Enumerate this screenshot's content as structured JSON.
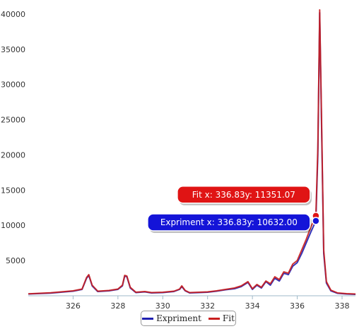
{
  "chart_data": {
    "type": "line",
    "title": "",
    "xlabel": "",
    "ylabel": "",
    "xlim": [
      324.0,
      338.6
    ],
    "ylim": [
      0,
      41000
    ],
    "x_ticks": [
      326,
      328,
      330,
      332,
      334,
      336,
      338
    ],
    "y_ticks": [
      5000,
      10000,
      15000,
      20000,
      25000,
      30000,
      35000,
      40000
    ],
    "y_tick_labels": [
      "5000",
      "10000",
      "15000",
      "20000",
      "25000",
      "30000",
      "35000",
      "40000"
    ],
    "grid": false,
    "legend_position": "bottom",
    "series": [
      {
        "name": "Expriment",
        "color": "#1f1fb0",
        "points": [
          [
            324.0,
            250
          ],
          [
            325.0,
            380
          ],
          [
            326.0,
            650
          ],
          [
            326.4,
            900
          ],
          [
            326.6,
            2500
          ],
          [
            326.7,
            2900
          ],
          [
            326.85,
            1400
          ],
          [
            327.1,
            600
          ],
          [
            327.6,
            700
          ],
          [
            328.0,
            900
          ],
          [
            328.2,
            1400
          ],
          [
            328.3,
            2800
          ],
          [
            328.4,
            2700
          ],
          [
            328.55,
            1100
          ],
          [
            328.8,
            450
          ],
          [
            329.2,
            550
          ],
          [
            329.5,
            400
          ],
          [
            330.0,
            450
          ],
          [
            330.5,
            600
          ],
          [
            330.75,
            900
          ],
          [
            330.85,
            1300
          ],
          [
            331.0,
            700
          ],
          [
            331.2,
            400
          ],
          [
            331.6,
            450
          ],
          [
            332.0,
            500
          ],
          [
            332.4,
            650
          ],
          [
            332.8,
            850
          ],
          [
            333.2,
            1000
          ],
          [
            333.5,
            1300
          ],
          [
            333.8,
            1900
          ],
          [
            334.0,
            900
          ],
          [
            334.2,
            1500
          ],
          [
            334.4,
            1100
          ],
          [
            334.6,
            2000
          ],
          [
            334.8,
            1500
          ],
          [
            335.0,
            2500
          ],
          [
            335.2,
            2100
          ],
          [
            335.4,
            3200
          ],
          [
            335.6,
            3000
          ],
          [
            335.8,
            4200
          ],
          [
            336.0,
            4700
          ],
          [
            336.2,
            6000
          ],
          [
            336.4,
            7500
          ],
          [
            336.6,
            9000
          ],
          [
            336.83,
            10632
          ],
          [
            336.92,
            20000
          ],
          [
            337.0,
            40200
          ],
          [
            337.08,
            25000
          ],
          [
            337.18,
            6000
          ],
          [
            337.3,
            1800
          ],
          [
            337.5,
            700
          ],
          [
            337.8,
            350
          ],
          [
            338.2,
            250
          ],
          [
            338.6,
            200
          ]
        ]
      },
      {
        "name": "Fit",
        "color": "#c81e1e",
        "points": [
          [
            324.0,
            280
          ],
          [
            325.0,
            420
          ],
          [
            326.0,
            700
          ],
          [
            326.4,
            950
          ],
          [
            326.6,
            2600
          ],
          [
            326.7,
            3000
          ],
          [
            326.85,
            1500
          ],
          [
            327.1,
            650
          ],
          [
            327.6,
            750
          ],
          [
            328.0,
            950
          ],
          [
            328.2,
            1500
          ],
          [
            328.3,
            2900
          ],
          [
            328.4,
            2800
          ],
          [
            328.55,
            1200
          ],
          [
            328.8,
            500
          ],
          [
            329.2,
            600
          ],
          [
            329.5,
            450
          ],
          [
            330.0,
            500
          ],
          [
            330.5,
            650
          ],
          [
            330.75,
            950
          ],
          [
            330.85,
            1400
          ],
          [
            331.0,
            750
          ],
          [
            331.2,
            450
          ],
          [
            331.6,
            500
          ],
          [
            332.0,
            550
          ],
          [
            332.4,
            700
          ],
          [
            332.8,
            900
          ],
          [
            333.2,
            1100
          ],
          [
            333.5,
            1400
          ],
          [
            333.8,
            2000
          ],
          [
            334.0,
            1000
          ],
          [
            334.2,
            1600
          ],
          [
            334.4,
            1200
          ],
          [
            334.6,
            2100
          ],
          [
            334.8,
            1700
          ],
          [
            335.0,
            2700
          ],
          [
            335.2,
            2300
          ],
          [
            335.4,
            3400
          ],
          [
            335.6,
            3200
          ],
          [
            335.8,
            4500
          ],
          [
            336.0,
            5000
          ],
          [
            336.2,
            6500
          ],
          [
            336.4,
            8000
          ],
          [
            336.6,
            9700
          ],
          [
            336.83,
            11351.07
          ],
          [
            336.92,
            21000
          ],
          [
            337.0,
            40600
          ],
          [
            337.08,
            26000
          ],
          [
            337.18,
            6500
          ],
          [
            337.3,
            2000
          ],
          [
            337.5,
            800
          ],
          [
            337.8,
            400
          ],
          [
            338.2,
            300
          ],
          [
            338.6,
            250
          ]
        ]
      }
    ],
    "tooltips": [
      {
        "series": "Fit",
        "x": 336.83,
        "y": 11351.07,
        "label": "Fit x: 336.83y: 11351.07",
        "color": "#e01414"
      },
      {
        "series": "Expriment",
        "x": 336.83,
        "y": 10632.0,
        "label": "Expriment x: 336.83y: 10632.00",
        "color": "#1414d8"
      }
    ]
  },
  "legend": {
    "items": [
      {
        "label": "Expriment",
        "color": "#1f1fb0"
      },
      {
        "label": "Fit",
        "color": "#c81e1e"
      }
    ]
  }
}
